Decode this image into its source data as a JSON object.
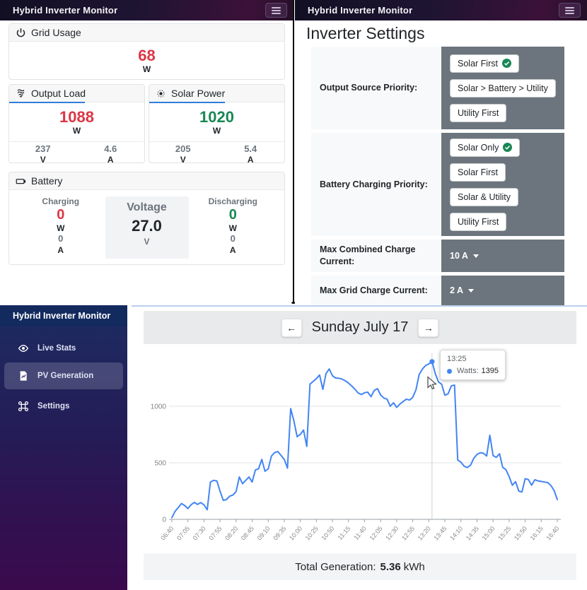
{
  "colors": {
    "danger": "#dc3545",
    "success": "#198754",
    "line_blue": "#4285f4",
    "cell_gray": "#6c757d",
    "accent_blue": "#2f7ed8"
  },
  "left_app": {
    "navbar": {
      "title": "Hybrid Inverter Monitor"
    },
    "grid_usage": {
      "title": "Grid Usage",
      "icon": "power-icon",
      "value": "68",
      "unit": "W"
    },
    "output_load": {
      "title": "Output Load",
      "icon": "cfl-bulb-icon",
      "value": "1088",
      "unit": "W",
      "volts": "237",
      "volts_unit": "V",
      "amps": "4.6",
      "amps_unit": "A"
    },
    "solar_power": {
      "title": "Solar Power",
      "icon": "sun-icon",
      "value": "1020",
      "unit": "W",
      "volts": "205",
      "volts_unit": "V",
      "amps": "5.4",
      "amps_unit": "A"
    },
    "battery": {
      "title": "Battery",
      "icon": "battery-icon",
      "charging": {
        "label": "Charging",
        "watts": "0",
        "watts_unit": "W",
        "amps": "0",
        "amps_unit": "A"
      },
      "voltage": {
        "label": "Voltage",
        "value": "27.0",
        "unit": "V"
      },
      "discharging": {
        "label": "Discharging",
        "watts": "0",
        "watts_unit": "W",
        "amps": "0",
        "amps_unit": "A"
      }
    }
  },
  "right_app": {
    "navbar": {
      "title": "Hybrid Inverter Monitor"
    },
    "heading": "Inverter Settings",
    "rows": [
      {
        "label": "Output Source Priority:",
        "type": "buttons",
        "options": [
          {
            "label": "Solar First",
            "selected": true
          },
          {
            "label": "Solar > Battery > Utility",
            "selected": false
          },
          {
            "label": "Utility First",
            "selected": false
          }
        ]
      },
      {
        "label": "Battery Charging Priority:",
        "type": "buttons",
        "options": [
          {
            "label": "Solar Only",
            "selected": true
          },
          {
            "label": "Solar First",
            "selected": false
          },
          {
            "label": "Solar & Utility",
            "selected": false
          },
          {
            "label": "Utility First",
            "selected": false
          }
        ]
      },
      {
        "label": "Max Combined Charge Current:",
        "type": "dropdown",
        "value": "10 A"
      },
      {
        "label": "Max Grid Charge Current:",
        "type": "dropdown",
        "value": "2 A"
      }
    ]
  },
  "bottom_app": {
    "sidebar": {
      "title": "Hybrid Inverter Monitor",
      "items": [
        {
          "label": "Live Stats",
          "icon": "eye-icon",
          "active": false
        },
        {
          "label": "PV Generation",
          "icon": "chart-file-icon",
          "active": true
        },
        {
          "label": "Settings",
          "icon": "command-icon",
          "active": false
        }
      ]
    },
    "date_nav": {
      "prev_label": "←",
      "title": "Sunday July 17",
      "next_label": "→"
    },
    "tooltip": {
      "time": "13:25",
      "series": "Watts:",
      "value": "1395"
    },
    "footer": {
      "label": "Total Generation:",
      "value": "5.36",
      "unit": "kWh"
    }
  },
  "chart_data": {
    "type": "line",
    "title": "Sunday July 17",
    "series_name": "Watts",
    "x_start": "06:40",
    "x_step_minutes": 5,
    "x_ticks": [
      "06:40",
      "07:05",
      "07:30",
      "07:55",
      "08:20",
      "08:45",
      "09:10",
      "09:35",
      "10:00",
      "10:25",
      "10:50",
      "11:15",
      "11:40",
      "12:05",
      "12:30",
      "12:55",
      "13:20",
      "13:45",
      "14:10",
      "14:35",
      "15:00",
      "15:25",
      "15:50",
      "16:15",
      "16:40"
    ],
    "y_ticks": [
      0,
      500,
      1000
    ],
    "ylim": [
      0,
      1530
    ],
    "grid": true,
    "legend_position": "none",
    "line_color": "#4285f4",
    "values": [
      15,
      70,
      105,
      140,
      122,
      95,
      130,
      150,
      132,
      148,
      128,
      85,
      330,
      345,
      340,
      250,
      168,
      175,
      205,
      215,
      245,
      375,
      315,
      345,
      375,
      330,
      437,
      447,
      530,
      425,
      447,
      560,
      590,
      600,
      565,
      530,
      453,
      980,
      870,
      731,
      752,
      790,
      645,
      1195,
      1220,
      1245,
      1277,
      1150,
      1290,
      1330,
      1270,
      1250,
      1248,
      1240,
      1225,
      1205,
      1180,
      1150,
      1118,
      1104,
      1120,
      1125,
      1085,
      1140,
      1156,
      1100,
      1073,
      1063,
      1000,
      1031,
      990,
      1020,
      1042,
      1063,
      1055,
      1080,
      1146,
      1281,
      1330,
      1360,
      1375,
      1395,
      1290,
      1215,
      1195,
      1098,
      1110,
      1180,
      1188,
      525,
      505,
      470,
      458,
      480,
      540,
      575,
      589,
      585,
      560,
      744,
      564,
      548,
      580,
      460,
      440,
      378,
      302,
      333,
      250,
      242,
      360,
      352,
      302,
      350,
      340,
      335,
      330,
      325,
      300,
      255,
      175
    ],
    "highlight": {
      "index": 81,
      "time": "13:25",
      "value": 1395
    },
    "total_generation_kwh": "5.36"
  }
}
